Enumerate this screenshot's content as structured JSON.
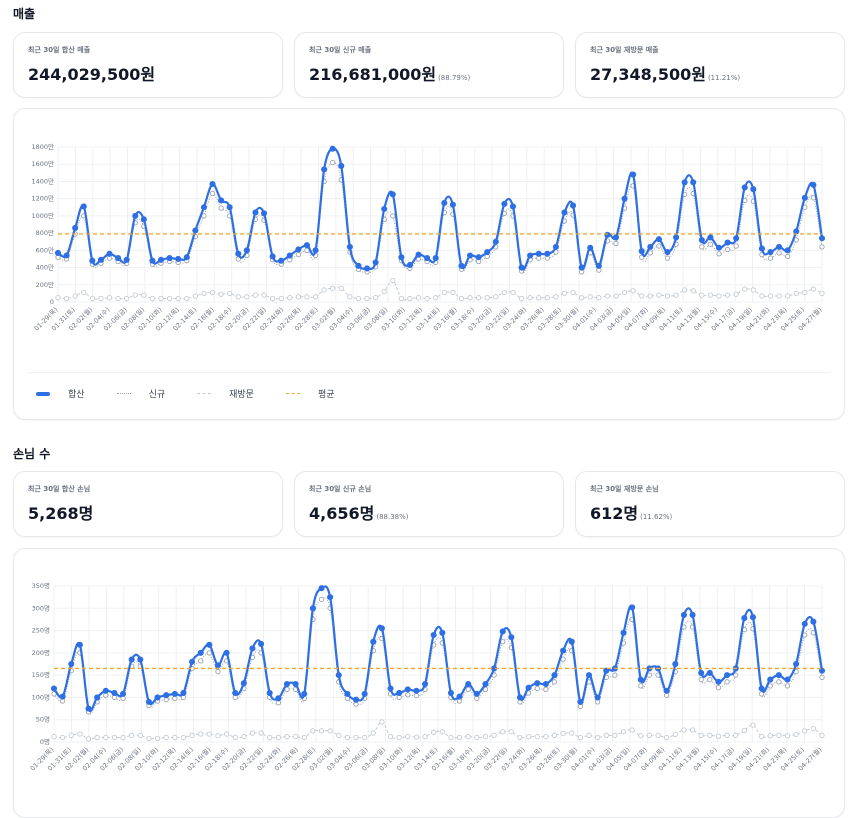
{
  "sales_section": {
    "title": "매출",
    "stats": [
      {
        "label": "최근 30일 합산 매출",
        "value": "244,029,500원",
        "pct": ""
      },
      {
        "label": "최근 30일 신규 매출",
        "value": "216,681,000원",
        "pct": "(88.79%)"
      },
      {
        "label": "최근 30일 재방문 매출",
        "value": "27,348,500원",
        "pct": "(11.21%)"
      }
    ]
  },
  "customers_section": {
    "title": "손님 수",
    "stats": [
      {
        "label": "최근 30일 합산 손님",
        "value": "5,268명",
        "pct": ""
      },
      {
        "label": "최근 30일 신규 손님",
        "value": "4,656명",
        "pct": "(88.38%)"
      },
      {
        "label": "최근 30일 재방문 손님",
        "value": "612명",
        "pct": "(11.62%)"
      }
    ]
  },
  "legend": {
    "total": "합산",
    "new": "신규",
    "revisit": "재방문",
    "average": "평균"
  },
  "colors": {
    "total": "#2f6fe4",
    "new": "#9ca3af",
    "revisit": "#c5cbd3",
    "average": "#f5a623",
    "grid": "#eef0f3"
  },
  "x_labels": [
    "01-29(목)",
    "01-31(토)",
    "02-02(월)",
    "02-04(수)",
    "02-06(금)",
    "02-08(일)",
    "02-10(화)",
    "02-12(목)",
    "02-14(토)",
    "02-16(월)",
    "02-18(수)",
    "02-20(금)",
    "02-22(일)",
    "02-24(화)",
    "02-26(목)",
    "02-28(토)",
    "03-02(월)",
    "03-04(수)",
    "03-06(금)",
    "03-08(일)",
    "03-10(화)",
    "03-12(목)",
    "03-14(토)",
    "03-16(월)",
    "03-18(수)",
    "03-20(금)",
    "03-22(일)",
    "03-24(화)",
    "03-26(목)",
    "03-28(토)",
    "03-30(월)",
    "04-01(수)",
    "04-03(금)",
    "04-05(일)",
    "04-07(화)",
    "04-09(목)",
    "04-11(토)",
    "04-13(월)",
    "04-15(수)",
    "04-17(금)",
    "04-19(일)",
    "04-21(화)",
    "04-23(목)",
    "04-25(토)",
    "04-27(월)"
  ],
  "chart_data": [
    {
      "type": "line",
      "ylim": [
        0,
        1800
      ],
      "yticks": [
        "0",
        "200만",
        "400만",
        "600만",
        "800만",
        "1000만",
        "1200만",
        "1400만",
        "1600만",
        "1800만"
      ],
      "average": 790,
      "series": [
        {
          "name": "합산",
          "values": [
            570,
            540,
            860,
            1110,
            480,
            490,
            560,
            510,
            490,
            1000,
            960,
            480,
            490,
            510,
            500,
            520,
            830,
            1100,
            1370,
            1180,
            1100,
            560,
            600,
            1040,
            1030,
            530,
            480,
            540,
            610,
            660,
            600,
            1540,
            1780,
            1580,
            640,
            420,
            390,
            460,
            1080,
            1250,
            520,
            430,
            550,
            510,
            510,
            1150,
            1130,
            420,
            540,
            520,
            580,
            700,
            1140,
            1110,
            400,
            540,
            560,
            560,
            640,
            1040,
            1120,
            400,
            630,
            420,
            780,
            750,
            1200,
            1480,
            590,
            640,
            730,
            580,
            750,
            1390,
            1390,
            720,
            750,
            630,
            690,
            740,
            1330,
            1310,
            620,
            580,
            640,
            600,
            820,
            1210,
            1360,
            740
          ]
        },
        {
          "name": "신규",
          "values": [
            520,
            500,
            790,
            1000,
            440,
            450,
            510,
            470,
            450,
            920,
            880,
            440,
            450,
            470,
            460,
            480,
            760,
            1000,
            1260,
            1090,
            1000,
            500,
            540,
            960,
            950,
            490,
            440,
            490,
            550,
            600,
            540,
            1400,
            1620,
            1420,
            580,
            380,
            350,
            410,
            960,
            1000,
            480,
            390,
            500,
            470,
            460,
            1040,
            1020,
            380,
            490,
            470,
            530,
            640,
            1030,
            1000,
            360,
            490,
            510,
            510,
            580,
            940,
            1010,
            350,
            570,
            370,
            710,
            680,
            1090,
            1350,
            520,
            570,
            650,
            510,
            670,
            1250,
            1260,
            640,
            670,
            560,
            610,
            650,
            1180,
            1170,
            550,
            510,
            570,
            530,
            720,
            1100,
            1210,
            640
          ]
        },
        {
          "name": "재방문",
          "values": [
            50,
            40,
            70,
            110,
            40,
            40,
            50,
            40,
            40,
            80,
            80,
            40,
            40,
            40,
            40,
            40,
            70,
            100,
            110,
            90,
            100,
            60,
            60,
            80,
            80,
            40,
            40,
            50,
            60,
            60,
            60,
            140,
            160,
            160,
            60,
            40,
            40,
            50,
            120,
            250,
            40,
            40,
            50,
            40,
            50,
            110,
            110,
            40,
            50,
            50,
            50,
            60,
            110,
            110,
            40,
            50,
            50,
            50,
            60,
            100,
            110,
            50,
            60,
            50,
            70,
            70,
            110,
            130,
            70,
            70,
            80,
            70,
            80,
            140,
            130,
            80,
            80,
            70,
            80,
            90,
            150,
            140,
            70,
            70,
            70,
            70,
            100,
            110,
            150,
            100
          ]
        }
      ]
    },
    {
      "type": "line",
      "ylim": [
        0,
        350
      ],
      "yticks": [
        "0명",
        "50명",
        "100명",
        "150명",
        "200명",
        "250명",
        "300명",
        "350명"
      ],
      "average": 165,
      "series": [
        {
          "name": "합산",
          "values": [
            120,
            102,
            175,
            218,
            75,
            100,
            115,
            110,
            108,
            185,
            185,
            90,
            100,
            105,
            108,
            110,
            180,
            200,
            218,
            172,
            200,
            110,
            132,
            210,
            220,
            110,
            98,
            130,
            130,
            108,
            300,
            345,
            325,
            150,
            108,
            95,
            108,
            225,
            255,
            120,
            110,
            118,
            115,
            130,
            240,
            245,
            110,
            102,
            130,
            108,
            130,
            165,
            248,
            235,
            100,
            122,
            132,
            130,
            150,
            205,
            225,
            90,
            150,
            100,
            160,
            165,
            245,
            302,
            140,
            165,
            165,
            115,
            175,
            285,
            285,
            155,
            155,
            135,
            150,
            165,
            278,
            280,
            120,
            140,
            150,
            140,
            175,
            265,
            270,
            160
          ]
        },
        {
          "name": "신규",
          "values": [
            108,
            92,
            160,
            200,
            68,
            90,
            105,
            100,
            98,
            170,
            170,
            82,
            92,
            95,
            98,
            100,
            165,
            182,
            200,
            158,
            182,
            100,
            120,
            190,
            200,
            100,
            88,
            118,
            118,
            98,
            275,
            320,
            300,
            135,
            98,
            85,
            98,
            205,
            232,
            108,
            100,
            106,
            104,
            118,
            218,
            222,
            100,
            92,
            118,
            98,
            118,
            150,
            225,
            212,
            90,
            110,
            120,
            118,
            135,
            186,
            205,
            80,
            135,
            90,
            145,
            150,
            222,
            275,
            126,
            150,
            150,
            105,
            158,
            258,
            258,
            140,
            140,
            122,
            135,
            150,
            252,
            254,
            108,
            126,
            135,
            126,
            158,
            240,
            245,
            145
          ]
        },
        {
          "name": "재방문",
          "values": [
            12,
            10,
            15,
            18,
            7,
            10,
            10,
            10,
            10,
            15,
            15,
            8,
            8,
            10,
            10,
            10,
            15,
            18,
            18,
            14,
            18,
            10,
            12,
            20,
            20,
            10,
            10,
            12,
            12,
            10,
            25,
            25,
            25,
            15,
            10,
            10,
            10,
            20,
            45,
            12,
            10,
            12,
            11,
            12,
            22,
            23,
            10,
            10,
            12,
            10,
            12,
            15,
            23,
            23,
            10,
            12,
            12,
            12,
            15,
            19,
            20,
            10,
            15,
            10,
            15,
            15,
            23,
            27,
            14,
            15,
            15,
            10,
            17,
            27,
            27,
            15,
            15,
            13,
            15,
            15,
            26,
            38,
            12,
            14,
            15,
            14,
            17,
            25,
            30,
            15
          ]
        }
      ]
    }
  ]
}
